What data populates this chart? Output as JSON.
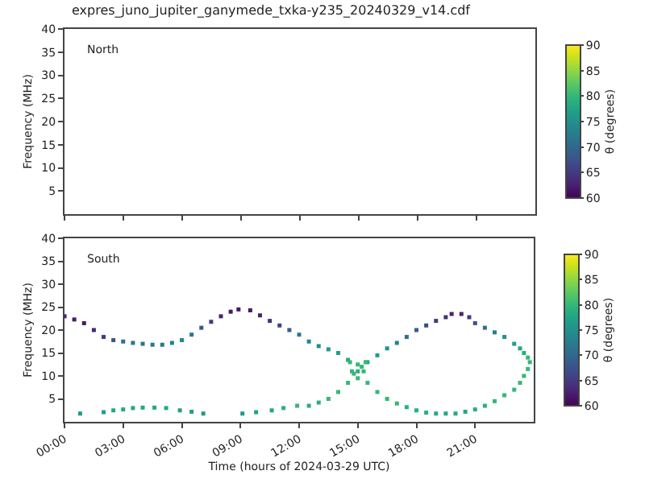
{
  "chart_data": [
    {
      "type": "scatter",
      "title": "expres_juno_jupiter_ganymede_txka-y235_20240329_v14.cdf",
      "ylabel": "Frequency (MHz)",
      "annotations": [
        "North"
      ],
      "xlim": [
        0,
        24
      ],
      "xticks": [
        {
          "value": 0,
          "label": null
        },
        {
          "value": 3,
          "label": null
        },
        {
          "value": 6,
          "label": null
        },
        {
          "value": 9,
          "label": null
        },
        {
          "value": 12,
          "label": null
        },
        {
          "value": 15,
          "label": null
        },
        {
          "value": 18,
          "label": null
        },
        {
          "value": 21,
          "label": null
        }
      ],
      "ylim": [
        0,
        40
      ],
      "yticks": [
        5,
        10,
        15,
        20,
        25,
        30,
        35,
        40
      ],
      "clabel": "θ (degrees)",
      "clim": [
        60,
        90
      ],
      "cticks": [
        60,
        65,
        70,
        75,
        80,
        85,
        90
      ],
      "tick_labels": "y"
    },
    {
      "type": "scatter",
      "xlabel": "Time (hours of 2024-03-29 UTC)",
      "ylabel": "Frequency (MHz)",
      "annotations": [
        "South"
      ],
      "x": [
        0,
        0.5,
        1,
        1.5,
        2,
        2.5,
        3,
        3.5,
        4,
        4.5,
        5,
        5.5,
        6,
        6.5,
        7,
        7.5,
        8,
        8.5,
        8.9,
        9.5,
        10,
        10.5,
        11,
        11.5,
        12,
        12.5,
        13,
        13.5,
        14,
        14.5,
        15,
        15.5,
        16,
        16.5,
        17,
        17.5,
        18,
        18.5,
        19,
        19.5,
        19.8,
        20.3,
        20.7,
        21,
        21.5,
        22,
        22.5,
        23,
        23.3,
        23.5,
        23.7,
        23.8,
        23.7,
        23.5,
        23.3,
        23,
        22.5,
        22,
        21.5,
        21,
        20.5,
        20,
        19.5,
        19,
        18.5,
        18,
        17.5,
        17,
        16.5,
        16,
        15.5,
        14.5,
        14,
        13.5,
        13,
        12.5,
        0.8,
        2,
        2.5,
        3,
        3.5,
        4,
        4.6,
        5.2,
        5.9,
        6.5,
        7.1,
        9.1,
        9.8,
        10.6,
        11.2,
        11.9,
        14.6,
        15.4,
        15,
        15,
        14.7,
        15.3,
        14.8,
        15.2
      ],
      "values": [
        23,
        22.3,
        21.5,
        20,
        18.5,
        17.8,
        17.5,
        17.2,
        17,
        16.8,
        16.8,
        17.2,
        17.8,
        19,
        20.5,
        21.8,
        23,
        24,
        24.5,
        24.3,
        23.2,
        22,
        21,
        20,
        19,
        17.5,
        16.5,
        15.8,
        15,
        13.5,
        11,
        13,
        14.5,
        16,
        17.2,
        18.5,
        20,
        21,
        22,
        22.8,
        23.5,
        23.5,
        22.8,
        21.5,
        20.5,
        19.5,
        18.5,
        17,
        16,
        15,
        14,
        13,
        11.5,
        10,
        8.5,
        7,
        5.8,
        4.5,
        3.5,
        2.7,
        2.2,
        1.8,
        1.8,
        1.8,
        2,
        2.5,
        3.2,
        4,
        5,
        6.5,
        8.5,
        8.5,
        6.5,
        5,
        4.2,
        3.5,
        1.8,
        2.1,
        2.5,
        2.7,
        3,
        3.1,
        3.1,
        3,
        2.5,
        2.2,
        1.8,
        1.8,
        2.1,
        2.5,
        3,
        3.5,
        13,
        13,
        9.5,
        12.5,
        11,
        11,
        10.5,
        12
      ],
      "cvalues": [
        62,
        62,
        62,
        63,
        65,
        68,
        71,
        72,
        72,
        72,
        72,
        73,
        74,
        72,
        68,
        65,
        63,
        62,
        62,
        62,
        63,
        64,
        66,
        69,
        72,
        74,
        75,
        76,
        77,
        78,
        79,
        78,
        77,
        75,
        73,
        71,
        69,
        67,
        65,
        64,
        63,
        63,
        65,
        68,
        71,
        73,
        75,
        77,
        78,
        79,
        80,
        80,
        80,
        80,
        80,
        80,
        80,
        80,
        79,
        79,
        78,
        78,
        78,
        78,
        79,
        79,
        79,
        80,
        80,
        80,
        80,
        80,
        80,
        80,
        79,
        79,
        76,
        77,
        78,
        78,
        78,
        78,
        78,
        78,
        77,
        77,
        76,
        76,
        77,
        78,
        79,
        80,
        80,
        80,
        80,
        80,
        80,
        80,
        80,
        80
      ],
      "xlim": [
        0,
        24
      ],
      "xticks": [
        {
          "value": 0,
          "label": "00:00"
        },
        {
          "value": 3,
          "label": "03:00"
        },
        {
          "value": 6,
          "label": "06:00"
        },
        {
          "value": 9,
          "label": "09:00"
        },
        {
          "value": 12,
          "label": "12:00"
        },
        {
          "value": 15,
          "label": "15:00"
        },
        {
          "value": 18,
          "label": "18:00"
        },
        {
          "value": 21,
          "label": "21:00"
        }
      ],
      "ylim": [
        0,
        40
      ],
      "yticks": [
        5,
        10,
        15,
        20,
        25,
        30,
        35,
        40
      ],
      "clabel": "θ (degrees)",
      "clim": [
        60,
        90
      ],
      "cticks": [
        60,
        65,
        70,
        75,
        80,
        85,
        90
      ],
      "marker": "square"
    }
  ]
}
